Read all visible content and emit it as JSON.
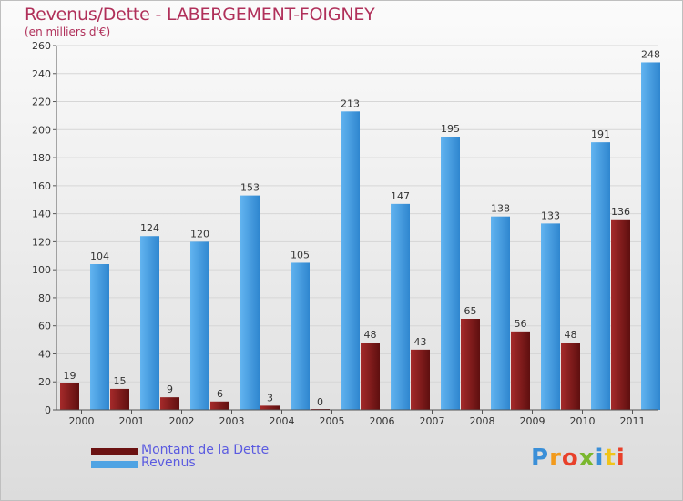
{
  "header": {
    "title": "Revenus/Dette - LABERGEMENT-FOIGNEY",
    "subtitle": "(en milliers d'€)"
  },
  "legend": {
    "debt_label": "Montant de la Dette",
    "revenue_label": "Revenus"
  },
  "logo": {
    "text": "Proxiti"
  },
  "colors": {
    "debt": "#8a1c1c",
    "revenue": "#4fa3e3",
    "title": "#b0305a"
  },
  "chart_data": {
    "type": "bar",
    "title": "Revenus/Dette - LABERGEMENT-FOIGNEY",
    "subtitle": "(en milliers d'€)",
    "xlabel": "",
    "ylabel": "",
    "ylim": [
      0,
      260
    ],
    "yticks": [
      0,
      20,
      40,
      60,
      80,
      100,
      120,
      140,
      160,
      180,
      200,
      220,
      240,
      260
    ],
    "grid": true,
    "legend_position": "bottom-left",
    "categories": [
      "2000",
      "2001",
      "2002",
      "2003",
      "2004",
      "2005",
      "2006",
      "2007",
      "2008",
      "2009",
      "2010",
      "2011"
    ],
    "series": [
      {
        "name": "Montant de la Dette",
        "values": [
          19,
          15,
          9,
          6,
          3,
          0,
          48,
          43,
          65,
          56,
          48,
          136
        ]
      },
      {
        "name": "Revenus",
        "values": [
          104,
          124,
          120,
          153,
          105,
          213,
          147,
          195,
          138,
          133,
          191,
          248
        ]
      }
    ]
  }
}
